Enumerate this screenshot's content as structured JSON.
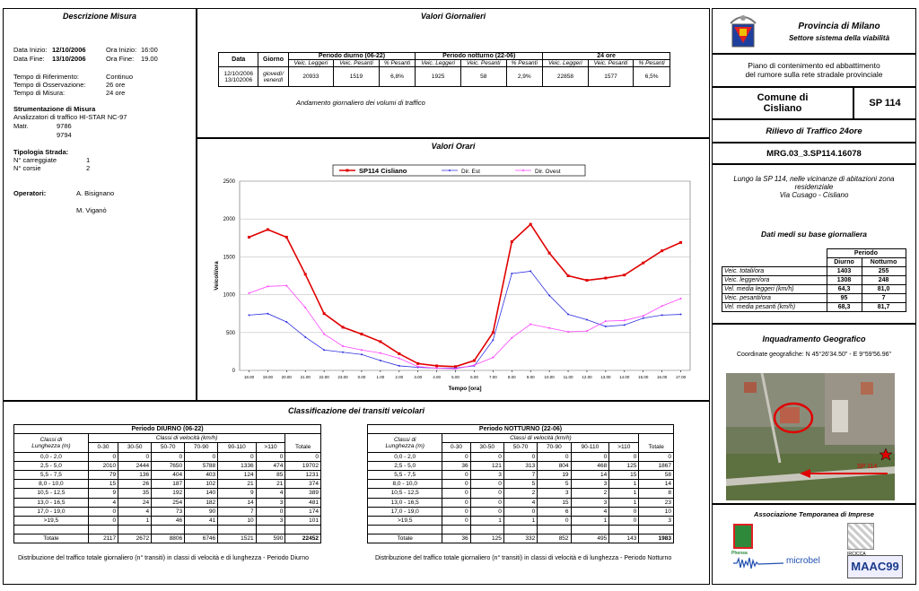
{
  "descrizione": {
    "title": "Descrizione Misura",
    "data_inizio_label": "Data Inizio:",
    "data_inizio": "12/10/2006",
    "ora_inizio_label": "Ora Inizio:",
    "ora_inizio": "16:00",
    "data_fine_label": "Data Fine:",
    "data_fine": "13/10/2006",
    "ora_fine_label": "Ora Fine:",
    "ora_fine": "19.00",
    "tempo_rif_label": "Tempo di Riferimento:",
    "tempo_rif": "Continuo",
    "tempo_oss_label": "Tempo di Osservazione:",
    "tempo_oss": "26 ore",
    "tempo_mis_label": "Tempo di Misura:",
    "tempo_mis": "24 ore",
    "strum_title": "Strumentazione di Misura",
    "strum": "Analizzatori di traffico HI-STAR NC-97",
    "matr_label": "Matr.",
    "matr1": "9786",
    "matr2": "9794",
    "tip_title": "Tipologia Strada:",
    "carr_label": "N° carreggiate",
    "carr": "1",
    "corsie_label": "N° corsie",
    "corsie": "2",
    "op_label": "Operatori:",
    "op1": "A. Bisignano",
    "op2": "M. Viganò"
  },
  "giornalieri": {
    "title": "Valori Giornalieri",
    "h_data": "Data",
    "h_giorno": "Giorno",
    "h_diurno": "Periodo diurno (06-22)",
    "h_notturno": "Periodo notturno (22-06)",
    "h_24": "24 ore",
    "sub": [
      "Veic. Leggeri",
      "Veic. Pesanti",
      "% Pesanti",
      "Veic. Leggeri",
      "Veic. Pesanti",
      "% Pesanti",
      "Veic. Leggeri",
      "Veic. Pesanti",
      "% Pesanti"
    ],
    "date1": "12/10/2006",
    "date2": "13/102006",
    "giorno1": "giovedì/",
    "giorno2": "venerdì",
    "vals": [
      "20933",
      "1519",
      "6,8%",
      "1925",
      "58",
      "2,9%",
      "22858",
      "1577",
      "6,5%"
    ],
    "caption": "Andamento giornaliero dei volumi di traffico"
  },
  "orari": {
    "title": "Valori Orari"
  },
  "chart_data": {
    "type": "line",
    "title": "",
    "xlabel": "Tempo [ora]",
    "ylabel": "Veicoli/ora",
    "ylim": [
      0,
      2500
    ],
    "yticks": [
      0,
      500,
      1000,
      1500,
      2000,
      2500
    ],
    "x": [
      "18.00",
      "19.00",
      "20.00",
      "21.00",
      "22.00",
      "23.00",
      "0.00",
      "1.00",
      "2.00",
      "3.00",
      "4.00",
      "5.00",
      "6.00",
      "7.00",
      "8.00",
      "9.00",
      "10.00",
      "11.00",
      "12.00",
      "13.00",
      "14.00",
      "15.00",
      "16.00",
      "17.00"
    ],
    "series": [
      {
        "name": "SP114 Cisliano",
        "color": "#e00000",
        "values": [
          1760,
          1860,
          1760,
          1270,
          750,
          570,
          480,
          380,
          220,
          90,
          60,
          50,
          130,
          500,
          1700,
          1930,
          1550,
          1250,
          1190,
          1220,
          1260,
          1420,
          1580,
          1690
        ]
      },
      {
        "name": "Dir. Est",
        "color": "#3030e0",
        "values": [
          730,
          750,
          640,
          440,
          270,
          240,
          210,
          130,
          60,
          40,
          30,
          30,
          60,
          400,
          1280,
          1310,
          990,
          740,
          670,
          580,
          600,
          690,
          730,
          740
        ]
      },
      {
        "name": "Dir. Ovest",
        "color": "#ff44ff",
        "values": [
          1020,
          1110,
          1120,
          830,
          480,
          320,
          270,
          230,
          160,
          50,
          30,
          20,
          70,
          170,
          430,
          610,
          560,
          510,
          520,
          650,
          660,
          720,
          850,
          950
        ]
      }
    ],
    "legend": "top"
  },
  "classificazione": {
    "title": "Classificazione dei transiti veicolari",
    "vel_label": "Classi di velocità (km/h)",
    "len_label1": "Classi di",
    "len_label2": "Lunghezza (m)",
    "cols": [
      "0-30",
      "30-50",
      "50-70",
      "70-90",
      "90-110",
      ">110",
      "Totale"
    ],
    "rows": [
      "0,0 - 2,0",
      "2,5 - 5,0",
      "5,5 - 7,5",
      "8,0 - 10,0",
      "10,5 - 12,5",
      "13,0 - 16,5",
      "17,0 - 19,0",
      ">19,5"
    ],
    "total_label": "Totale",
    "diurno": {
      "title": "Periodo DIURNO (06-22)",
      "data": [
        [
          "0",
          "0",
          "0",
          "0",
          "0",
          "0",
          "0"
        ],
        [
          "2010",
          "2444",
          "7650",
          "5788",
          "1336",
          "474",
          "19702"
        ],
        [
          "79",
          "136",
          "404",
          "403",
          "124",
          "85",
          "1231"
        ],
        [
          "15",
          "26",
          "187",
          "102",
          "21",
          "21",
          "374"
        ],
        [
          "9",
          "35",
          "192",
          "140",
          "9",
          "4",
          "389"
        ],
        [
          "4",
          "24",
          "254",
          "182",
          "14",
          "3",
          "481"
        ],
        [
          "0",
          "4",
          "73",
          "90",
          "7",
          "0",
          "174"
        ],
        [
          "0",
          "1",
          "46",
          "41",
          "10",
          "3",
          "101"
        ]
      ],
      "totals": [
        "2117",
        "2672",
        "8806",
        "6746",
        "1521",
        "590",
        "22452"
      ],
      "caption": "Distribuzione del traffico totale giornaliero (n° transiti) in classi di velocità e di lunghezza - Periodo Diurno"
    },
    "notturno": {
      "title": "Periodo NOTTURNO (22-06)",
      "data": [
        [
          "0",
          "0",
          "0",
          "0",
          "0",
          "0",
          "0"
        ],
        [
          "36",
          "121",
          "313",
          "804",
          "468",
          "125",
          "1867"
        ],
        [
          "0",
          "3",
          "7",
          "19",
          "14",
          "15",
          "58"
        ],
        [
          "0",
          "0",
          "5",
          "5",
          "3",
          "1",
          "14"
        ],
        [
          "0",
          "0",
          "2",
          "3",
          "2",
          "1",
          "8"
        ],
        [
          "0",
          "0",
          "4",
          "15",
          "3",
          "1",
          "23"
        ],
        [
          "0",
          "0",
          "0",
          "6",
          "4",
          "0",
          "10"
        ],
        [
          "0",
          "1",
          "1",
          "0",
          "1",
          "0",
          "3"
        ]
      ],
      "totals": [
        "36",
        "125",
        "332",
        "852",
        "495",
        "143",
        "1983"
      ],
      "caption": "Distribuzione del traffico totale giornaliero (n° transiti) in classi di velocità e di lunghezza - Periodo Notturno"
    }
  },
  "header": {
    "provincia": "Provincia di Milano",
    "settore": "Settore sistema della viabilità",
    "piano1": "Piano di contenimento ed abbattimento",
    "piano2": "del rumore sulla rete stradale provinciale",
    "comune1": "Comune di",
    "comune2": "Cisliano",
    "strada": "SP 114",
    "rilievo": "Rilievo di Traffico 24ore",
    "codice": "MRG.03_3.SP114.16078",
    "desc1": "Lungo la SP 114, nelle vicinanze di abitazioni zona",
    "desc2": "residenziale",
    "desc3": "Via Cusago - Cisliano"
  },
  "medi": {
    "title": "Dati medi su base giornaliera",
    "periodo": "Periodo",
    "diurno": "Diurno",
    "notturno": "Notturno",
    "rows": [
      [
        "Veic. totali/ora",
        "1403",
        "255"
      ],
      [
        "Veic. leggeri/ora",
        "1308",
        "248"
      ],
      [
        "Vel. media leggeri (km/h)",
        "64,3",
        "81,0"
      ],
      [
        "Veic. pesanti/ora",
        "95",
        "7"
      ],
      [
        "Vel. media pesanti (km/h)",
        "68,3",
        "81,7"
      ]
    ]
  },
  "geo": {
    "title": "Inquadramento Geografico",
    "coords": "Coordinate geografiche: N   45°26'34.50\" - E   9°59'56.96\"",
    "map_label": "SP 114"
  },
  "imprese": {
    "title": "Associazione Temporanea di Imprese",
    "logo1": "Phenea",
    "logo2": "microbel",
    "logo3": "MAAC99",
    "logo4": "IRCICCA"
  }
}
